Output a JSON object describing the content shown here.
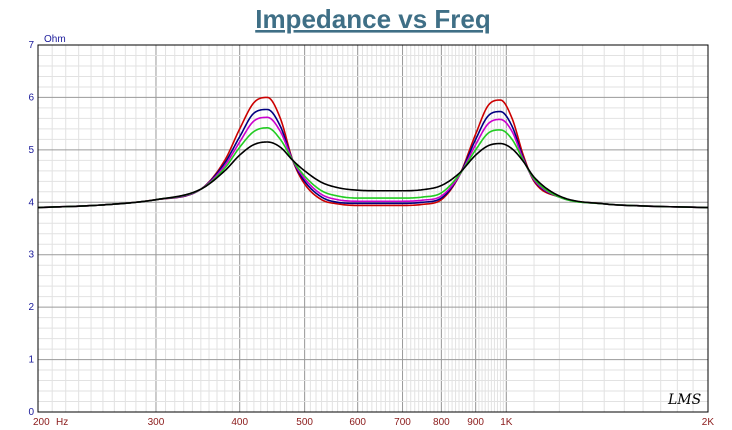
{
  "chart_data": {
    "type": "line",
    "title": "Impedance vs Freq",
    "ylabel": "Ohm",
    "x_unit": "Hz",
    "xscale": "log",
    "xlim": [
      200,
      2000
    ],
    "ylim": [
      0,
      7
    ],
    "grid": true,
    "yticks": [
      "0",
      "1",
      "2",
      "3",
      "4",
      "5",
      "6",
      "7"
    ],
    "xticks": [
      {
        "value": 200,
        "label": "200"
      },
      {
        "value": 300,
        "label": "300"
      },
      {
        "value": 400,
        "label": "400"
      },
      {
        "value": 500,
        "label": "500"
      },
      {
        "value": 600,
        "label": "600"
      },
      {
        "value": 700,
        "label": "700"
      },
      {
        "value": 800,
        "label": "800"
      },
      {
        "value": 900,
        "label": "900"
      },
      {
        "value": 1000,
        "label": "1K"
      },
      {
        "value": 2000,
        "label": "2K"
      }
    ],
    "x": [
      200,
      250,
      300,
      350,
      380,
      400,
      420,
      440,
      460,
      480,
      500,
      530,
      560,
      600,
      650,
      700,
      750,
      800,
      850,
      900,
      940,
      980,
      1020,
      1060,
      1100,
      1200,
      1400,
      1600,
      2000
    ],
    "series": [
      {
        "color": "#cc0000",
        "values": [
          3.9,
          3.95,
          4.05,
          4.25,
          4.8,
          5.4,
          5.9,
          6.0,
          5.6,
          4.8,
          4.35,
          4.05,
          3.97,
          3.94,
          3.94,
          3.94,
          3.96,
          4.05,
          4.5,
          5.3,
          5.85,
          5.95,
          5.6,
          4.9,
          4.4,
          4.1,
          3.97,
          3.93,
          3.9
        ]
      },
      {
        "color": "#000080",
        "values": [
          3.9,
          3.95,
          4.05,
          4.25,
          4.75,
          5.25,
          5.7,
          5.77,
          5.45,
          4.8,
          4.4,
          4.1,
          4.0,
          3.98,
          3.98,
          3.98,
          4.0,
          4.08,
          4.5,
          5.2,
          5.65,
          5.73,
          5.45,
          4.85,
          4.42,
          4.1,
          3.97,
          3.93,
          3.9
        ]
      },
      {
        "color": "#cc00cc",
        "values": [
          3.9,
          3.95,
          4.05,
          4.25,
          4.7,
          5.15,
          5.55,
          5.62,
          5.35,
          4.8,
          4.45,
          4.15,
          4.05,
          4.02,
          4.02,
          4.02,
          4.04,
          4.12,
          4.5,
          5.1,
          5.5,
          5.58,
          5.35,
          4.82,
          4.43,
          4.1,
          3.97,
          3.93,
          3.9
        ]
      },
      {
        "color": "#22cc22",
        "values": [
          3.9,
          3.95,
          4.05,
          4.25,
          4.65,
          5.05,
          5.35,
          5.42,
          5.2,
          4.8,
          4.5,
          4.22,
          4.12,
          4.08,
          4.08,
          4.08,
          4.1,
          4.18,
          4.52,
          5.0,
          5.32,
          5.38,
          5.2,
          4.8,
          4.45,
          4.1,
          3.97,
          3.93,
          3.9
        ]
      },
      {
        "color": "#000000",
        "values": [
          3.9,
          3.95,
          4.05,
          4.25,
          4.6,
          4.9,
          5.1,
          5.15,
          5.05,
          4.8,
          4.6,
          4.38,
          4.28,
          4.23,
          4.22,
          4.22,
          4.24,
          4.32,
          4.55,
          4.9,
          5.08,
          5.12,
          5.02,
          4.78,
          4.48,
          4.12,
          3.97,
          3.93,
          3.9
        ]
      }
    ]
  },
  "watermark": "LMS"
}
